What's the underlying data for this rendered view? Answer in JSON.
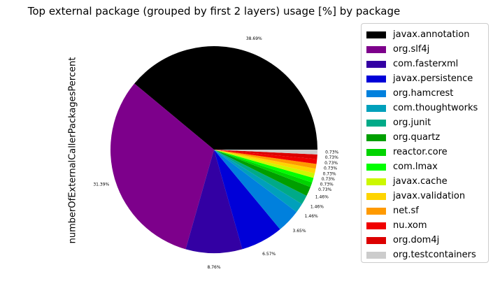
{
  "chart_data": {
    "type": "pie",
    "title": "Top external package (grouped by first 2 layers) usage [%] by package",
    "ylabel": "numberOfExternalCallerPackagesPercent",
    "legend_position": "right",
    "slices": [
      {
        "label": "javax.annotation",
        "value": 38.69,
        "value_label": "38.69%",
        "color": "#000000"
      },
      {
        "label": "org.slf4j",
        "value": 31.39,
        "value_label": "31.39%",
        "color": "#7d008b"
      },
      {
        "label": "com.fasterxml",
        "value": 8.76,
        "value_label": "8.76%",
        "color": "#3300a3"
      },
      {
        "label": "javax.persistence",
        "value": 6.57,
        "value_label": "6.57%",
        "color": "#0000d8"
      },
      {
        "label": "org.hamcrest",
        "value": 3.65,
        "value_label": "3.65%",
        "color": "#0080dd"
      },
      {
        "label": "com.thoughtworks",
        "value": 1.46,
        "value_label": "1.46%",
        "color": "#00a0bb"
      },
      {
        "label": "org.junit",
        "value": 1.46,
        "value_label": "1.46%",
        "color": "#00aa88"
      },
      {
        "label": "org.quartz",
        "value": 1.46,
        "value_label": "1.46%",
        "color": "#009f00"
      },
      {
        "label": "reactor.core",
        "value": 0.73,
        "value_label": "0.73%",
        "color": "#00d400"
      },
      {
        "label": "com.lmax",
        "value": 0.73,
        "value_label": "0.73%",
        "color": "#00ff00"
      },
      {
        "label": "javax.cache",
        "value": 0.73,
        "value_label": "0.73%",
        "color": "#ccf800"
      },
      {
        "label": "javax.validation",
        "value": 0.73,
        "value_label": "0.73%",
        "color": "#fed400"
      },
      {
        "label": "net.sf",
        "value": 0.73,
        "value_label": "0.73%",
        "color": "#ff9a00"
      },
      {
        "label": "nu.xom",
        "value": 0.73,
        "value_label": "0.73%",
        "color": "#f00000"
      },
      {
        "label": "org.dom4j",
        "value": 0.73,
        "value_label": "0.73%",
        "color": "#dc0000"
      },
      {
        "label": "org.testcontainers",
        "value": 0.73,
        "value_label": "0.73%",
        "color": "#cccccc"
      }
    ]
  }
}
